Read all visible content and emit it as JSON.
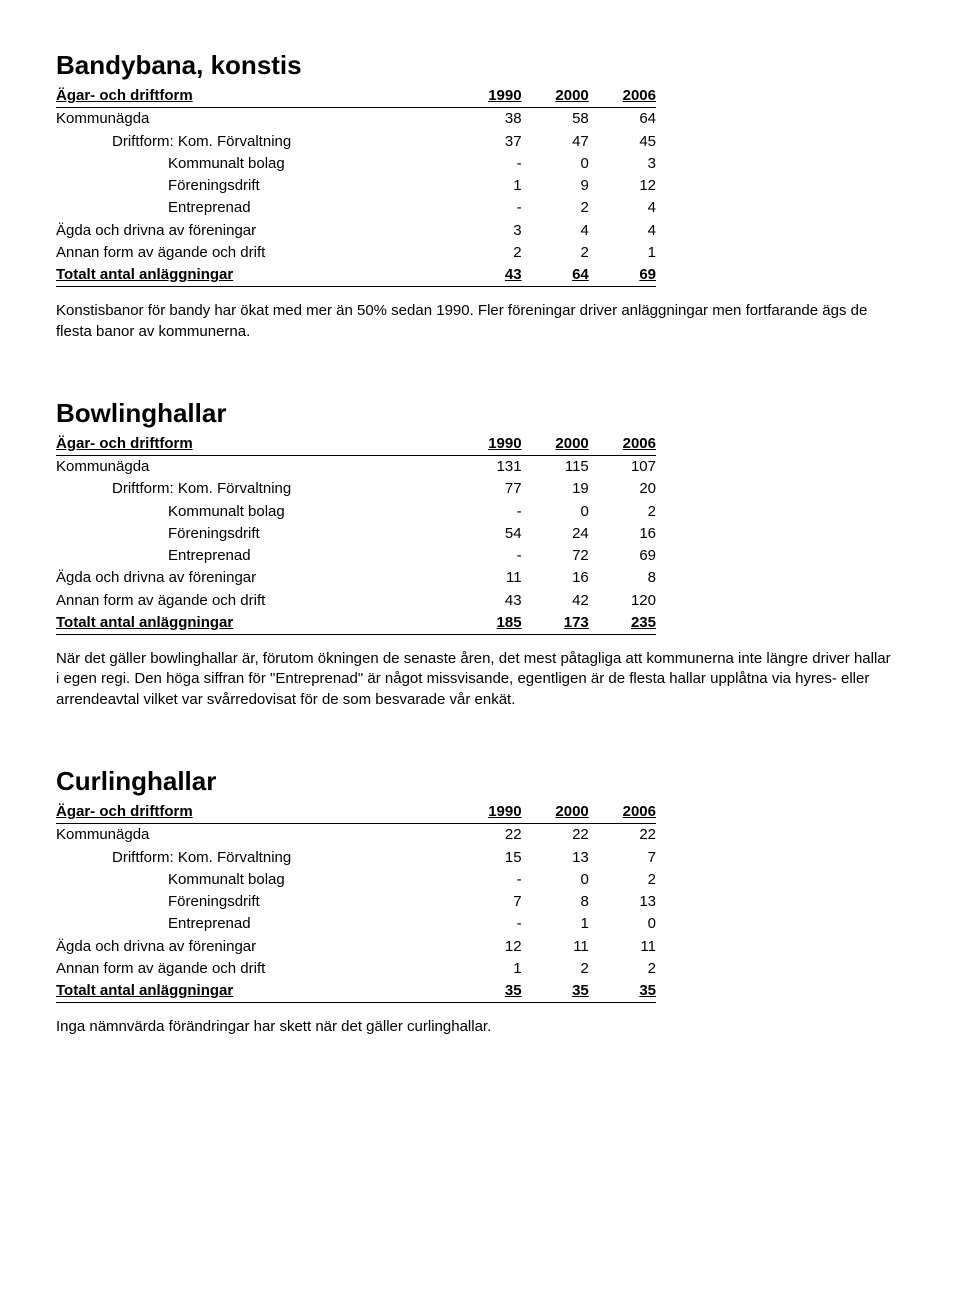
{
  "header": {
    "col_owner": "Ägar- och driftform",
    "col_y1": "1990",
    "col_y2": "2000",
    "col_y3": "2006"
  },
  "rows_common": {
    "kommunagda": "Kommunägda",
    "driftform_forvaltning": "Driftform:   Kom. Förvaltning",
    "kommunalt_bolag": "Kommunalt bolag",
    "foreningsdrift": "Föreningsdrift",
    "entreprenad": "Entreprenad",
    "agda_foreningar": "Ägda och drivna av föreningar",
    "annan_form": "Annan form av ägande och drift",
    "totalt": "Totalt antal anläggningar"
  },
  "bandy": {
    "title": "Bandybana, konstis",
    "kommunagda": [
      "38",
      "58",
      "64"
    ],
    "forvaltning": [
      "37",
      "47",
      "45"
    ],
    "kommunalt_bolag": [
      "-",
      "0",
      "3"
    ],
    "foreningsdrift": [
      "1",
      "9",
      "12"
    ],
    "entreprenad": [
      "-",
      "2",
      "4"
    ],
    "foreningar": [
      "3",
      "4",
      "4"
    ],
    "annan": [
      "2",
      "2",
      "1"
    ],
    "totalt": [
      "43",
      "64",
      "69"
    ],
    "para": "Konstisbanor för bandy har ökat med mer än 50% sedan 1990. Fler föreningar driver anläggningar men fortfarande ägs de flesta banor av kommunerna."
  },
  "bowling": {
    "title": "Bowlinghallar",
    "kommunagda": [
      "131",
      "115",
      "107"
    ],
    "forvaltning": [
      "77",
      "19",
      "20"
    ],
    "kommunalt_bolag": [
      "-",
      "0",
      "2"
    ],
    "foreningsdrift": [
      "54",
      "24",
      "16"
    ],
    "entreprenad": [
      "-",
      "72",
      "69"
    ],
    "foreningar": [
      "11",
      "16",
      "8"
    ],
    "annan": [
      "43",
      "42",
      "120"
    ],
    "totalt": [
      "185",
      "173",
      "235"
    ],
    "para": "När det gäller bowlinghallar är, förutom ökningen de senaste åren, det mest påtagliga att kommunerna inte längre driver hallar i egen regi. Den höga siffran för \"Entreprenad\" är något missvisande, egentligen är de flesta hallar upplåtna via hyres- eller arrendeavtal vilket var svårredovisat för de som besvarade vår enkät."
  },
  "curling": {
    "title": "Curlinghallar",
    "kommunagda": [
      "22",
      "22",
      "22"
    ],
    "forvaltning": [
      "15",
      "13",
      "7"
    ],
    "kommunalt_bolag": [
      "-",
      "0",
      "2"
    ],
    "foreningsdrift": [
      "7",
      "8",
      "13"
    ],
    "entreprenad": [
      "-",
      "1",
      "0"
    ],
    "foreningar": [
      "12",
      "11",
      "11"
    ],
    "annan": [
      "1",
      "2",
      "2"
    ],
    "totalt": [
      "35",
      "35",
      "35"
    ],
    "para": "Inga nämnvärda förändringar har skett när det gäller curlinghallar."
  }
}
